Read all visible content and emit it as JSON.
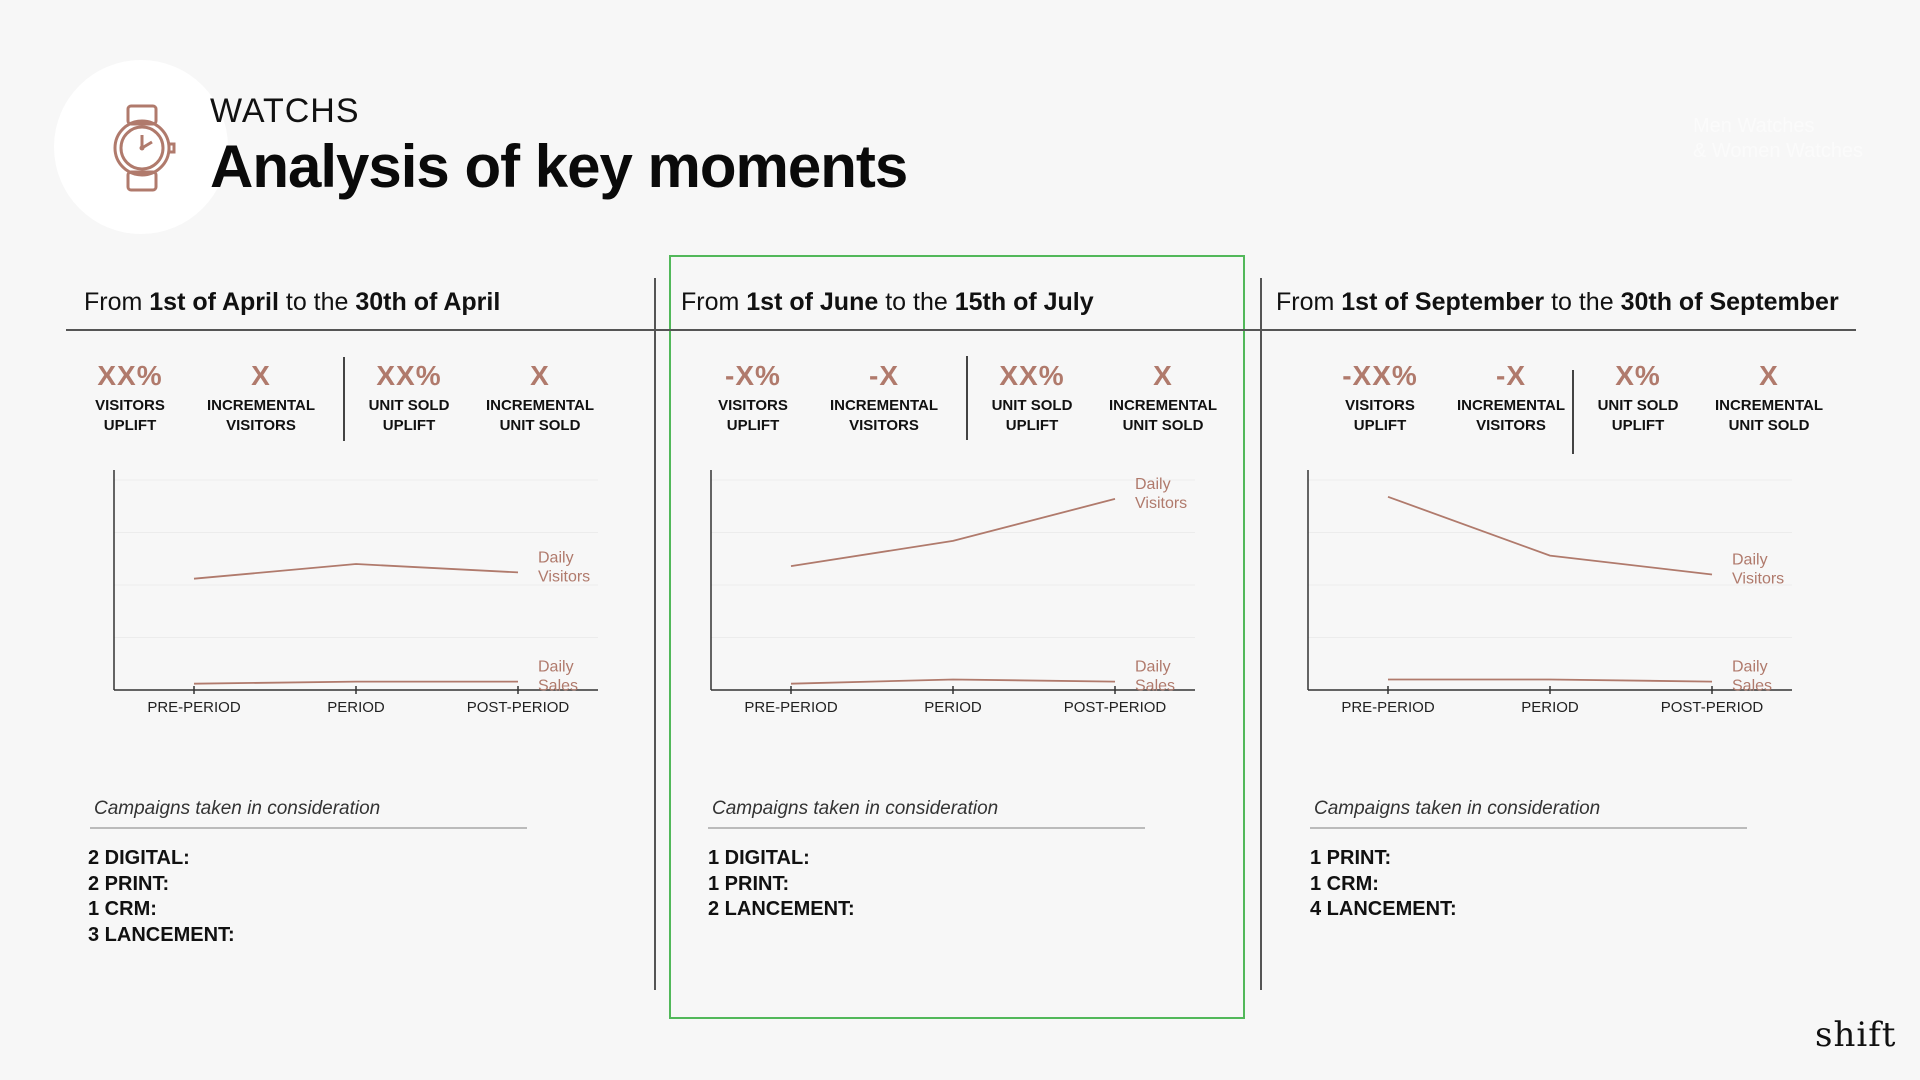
{
  "header": {
    "category": "WATCHS",
    "title": "Analysis of key moments",
    "tag": "Men Watches\n& Women Watches",
    "icon": "watch-icon"
  },
  "logo": "shift",
  "colors": {
    "accent": "#b07a6c",
    "highlight": "#52b85a"
  },
  "periods": [
    {
      "prefix": "From ",
      "start": "1st of April",
      "mid": " to the ",
      "end": "30th of April",
      "kpis": [
        {
          "value": "XX%",
          "label1": "VISITORS",
          "label2": "UPLIFT"
        },
        {
          "value": "X",
          "label1": "INCREMENTAL",
          "label2": "VISITORS"
        },
        {
          "value": "XX%",
          "label1": "UNIT SOLD",
          "label2": "UPLIFT"
        },
        {
          "value": "X",
          "label1": "INCREMENTAL",
          "label2": "UNIT SOLD"
        }
      ],
      "campaigns_title": "Campaigns taken in consideration",
      "campaigns": [
        "2 DIGITAL:",
        "2 PRINT:",
        "1 CRM:",
        "3 LANCEMENT:"
      ],
      "highlighted": false
    },
    {
      "prefix": "From ",
      "start": "1st of June",
      "mid": " to the ",
      "end": "15th of July",
      "kpis": [
        {
          "value": "-X%",
          "label1": "VISITORS",
          "label2": "UPLIFT"
        },
        {
          "value": "-X",
          "label1": "INCREMENTAL",
          "label2": "VISITORS"
        },
        {
          "value": "XX%",
          "label1": "UNIT SOLD",
          "label2": "UPLIFT"
        },
        {
          "value": "X",
          "label1": "INCREMENTAL",
          "label2": "UNIT SOLD"
        }
      ],
      "campaigns_title": "Campaigns taken in consideration",
      "campaigns": [
        "1 DIGITAL:",
        "1 PRINT:",
        "2 LANCEMENT:"
      ],
      "highlighted": true
    },
    {
      "prefix": "From ",
      "start": "1st of September",
      "mid": " to the ",
      "end": "30th of September",
      "kpis": [
        {
          "value": "-XX%",
          "label1": "VISITORS",
          "label2": "UPLIFT"
        },
        {
          "value": "-X",
          "label1": "INCREMENTAL",
          "label2": "VISITORS"
        },
        {
          "value": "X%",
          "label1": "UNIT SOLD",
          "label2": "UPLIFT"
        },
        {
          "value": "X",
          "label1": "INCREMENTAL",
          "label2": "UNIT SOLD"
        }
      ],
      "campaigns_title": "Campaigns taken in consideration",
      "campaigns": [
        "1 PRINT:",
        "1 CRM:",
        "4 LANCEMENT:"
      ],
      "highlighted": false
    }
  ],
  "chart_data": [
    {
      "type": "line",
      "categories": [
        "PRE-PERIOD",
        "PERIOD",
        "POST-PERIOD"
      ],
      "series": [
        {
          "name": "Daily Visitors",
          "values": [
            53,
            60,
            56
          ]
        },
        {
          "name": "Daily Sales",
          "values": [
            3,
            4,
            4
          ]
        }
      ],
      "ylim": [
        0,
        100
      ],
      "grid": true
    },
    {
      "type": "line",
      "categories": [
        "PRE-PERIOD",
        "PERIOD",
        "POST-PERIOD"
      ],
      "series": [
        {
          "name": "Daily Visitors",
          "values": [
            59,
            71,
            91
          ]
        },
        {
          "name": "Daily Sales",
          "values": [
            3,
            5,
            4
          ]
        }
      ],
      "ylim": [
        0,
        100
      ],
      "grid": true
    },
    {
      "type": "line",
      "categories": [
        "PRE-PERIOD",
        "PERIOD",
        "POST-PERIOD"
      ],
      "series": [
        {
          "name": "Daily Visitors",
          "values": [
            92,
            64,
            55
          ]
        },
        {
          "name": "Daily Sales",
          "values": [
            5,
            5,
            4
          ]
        }
      ],
      "ylim": [
        0,
        100
      ],
      "grid": true
    }
  ]
}
